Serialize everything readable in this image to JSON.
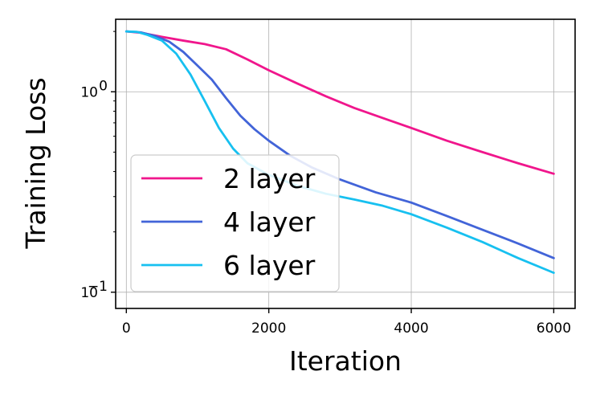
{
  "chart_data": {
    "type": "line",
    "title": "",
    "xlabel": "Iteration",
    "ylabel": "Training Loss",
    "xlim": [
      -150,
      6300
    ],
    "ylim": [
      0.083,
      2.3
    ],
    "yscale": "log",
    "grid": true,
    "legend_position": "lower-left",
    "x_ticks": [
      0,
      2000,
      4000,
      6000
    ],
    "x_tick_labels": [
      "0",
      "2000",
      "4000",
      "6000"
    ],
    "y_ticks": [
      0.1,
      1.0
    ],
    "y_tick_base": "10",
    "y_tick_exponents": [
      "−1",
      "0"
    ],
    "series": [
      {
        "name": "2 layer",
        "color": "#f0168c",
        "points": [
          [
            0,
            2.0
          ],
          [
            200,
            1.97
          ],
          [
            500,
            1.88
          ],
          [
            800,
            1.8
          ],
          [
            1100,
            1.73
          ],
          [
            1400,
            1.63
          ],
          [
            1700,
            1.45
          ],
          [
            2000,
            1.28
          ],
          [
            2400,
            1.1
          ],
          [
            2800,
            0.95
          ],
          [
            3200,
            0.83
          ],
          [
            3600,
            0.74
          ],
          [
            4000,
            0.66
          ],
          [
            4500,
            0.57
          ],
          [
            5000,
            0.5
          ],
          [
            5500,
            0.44
          ],
          [
            6000,
            0.39
          ]
        ]
      },
      {
        "name": "4 layer",
        "color": "#4264d8",
        "points": [
          [
            0,
            2.0
          ],
          [
            200,
            1.98
          ],
          [
            400,
            1.9
          ],
          [
            600,
            1.78
          ],
          [
            800,
            1.58
          ],
          [
            1000,
            1.35
          ],
          [
            1200,
            1.15
          ],
          [
            1400,
            0.93
          ],
          [
            1600,
            0.76
          ],
          [
            1800,
            0.65
          ],
          [
            2000,
            0.57
          ],
          [
            2300,
            0.48
          ],
          [
            2600,
            0.42
          ],
          [
            3000,
            0.365
          ],
          [
            3500,
            0.315
          ],
          [
            4000,
            0.28
          ],
          [
            4500,
            0.24
          ],
          [
            5000,
            0.205
          ],
          [
            5500,
            0.175
          ],
          [
            6000,
            0.148
          ]
        ]
      },
      {
        "name": "6 layer",
        "color": "#17c0f0",
        "points": [
          [
            0,
            2.0
          ],
          [
            150,
            1.99
          ],
          [
            300,
            1.92
          ],
          [
            500,
            1.8
          ],
          [
            700,
            1.55
          ],
          [
            900,
            1.22
          ],
          [
            1100,
            0.9
          ],
          [
            1300,
            0.66
          ],
          [
            1500,
            0.52
          ],
          [
            1700,
            0.44
          ],
          [
            2000,
            0.385
          ],
          [
            2400,
            0.34
          ],
          [
            2800,
            0.31
          ],
          [
            3200,
            0.29
          ],
          [
            3600,
            0.27
          ],
          [
            4000,
            0.245
          ],
          [
            4500,
            0.21
          ],
          [
            5000,
            0.178
          ],
          [
            5500,
            0.148
          ],
          [
            6000,
            0.125
          ]
        ]
      }
    ]
  }
}
